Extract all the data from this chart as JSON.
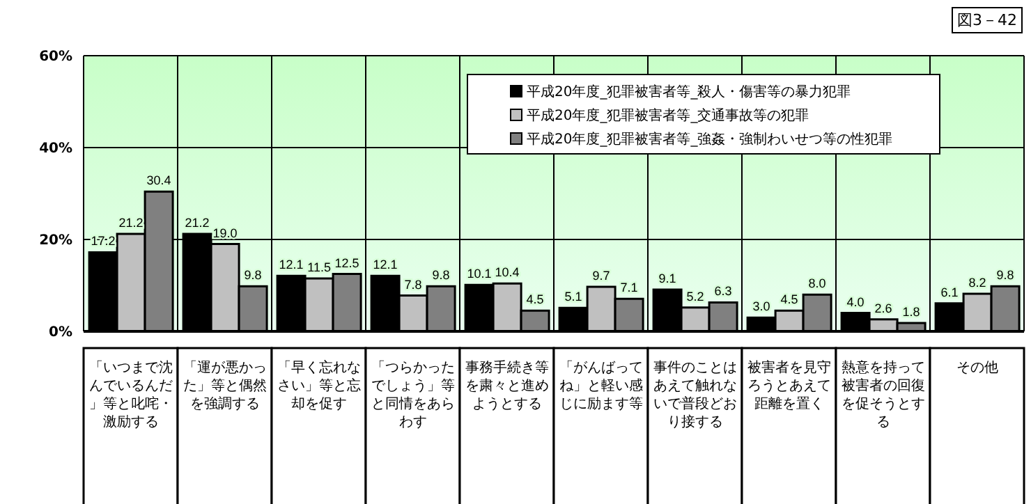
{
  "chart_data": {
    "type": "bar",
    "title": "図3－42",
    "categories": [
      "「いつまで沈んでいるんだ」等と叱咤・激励する",
      "「運が悪かった」等と偶然を強調する",
      "「早く忘れなさい」等と忘却を促す",
      "「つらかったでしょう」等と同情をあらわす",
      "事務手続き等を粛々と進めようとする",
      "「がんばってね」と軽い感じに励ます等",
      "事件のことはあえて触れないで普段どおり接する",
      "被害者を見守ろうとあえて距離を置く",
      "熱意を持って被害者の回復を促そうとする",
      "その他"
    ],
    "series": [
      {
        "name": "平成20年度_犯罪被害者等_殺人・傷害等の暴力犯罪",
        "color": "#000000",
        "values": [
          17.2,
          21.2,
          12.1,
          12.1,
          10.1,
          5.1,
          9.1,
          3.0,
          4.0,
          6.1
        ],
        "value_labels": [
          "17.2",
          "21.2",
          "12.1",
          "12.1",
          "10.1",
          "5.1",
          "9.1",
          "3.0",
          "4.0",
          "6.1"
        ]
      },
      {
        "name": "平成20年度_犯罪被害者等_交通事故等の犯罪",
        "color": "#c0c0c0",
        "values": [
          21.2,
          19.0,
          11.5,
          7.8,
          10.4,
          9.7,
          5.2,
          4.5,
          2.6,
          8.2
        ],
        "value_labels": [
          "21.2",
          "19.0",
          "11.5",
          "7.8",
          "10.4",
          "9.7",
          "5.2",
          "4.5",
          "2.6",
          "8.2"
        ]
      },
      {
        "name": "平成20年度_犯罪被害者等_強姦・強制わいせつ等の性犯罪",
        "color": "#808080",
        "values": [
          30.4,
          9.8,
          12.5,
          9.8,
          4.5,
          7.1,
          6.3,
          8.0,
          1.8,
          9.8
        ],
        "value_labels": [
          "30.4",
          "9.8",
          "12.5",
          "9.8",
          "4.5",
          "7.1",
          "6.3",
          "8.0",
          "1.8",
          "9.8"
        ]
      }
    ],
    "ylim": [
      0,
      60
    ],
    "yticks": [
      {
        "value": 0,
        "label": "0%"
      },
      {
        "value": 20,
        "label": "20%"
      },
      {
        "value": 40,
        "label": "40%"
      },
      {
        "value": 60,
        "label": "60%"
      }
    ],
    "grid": true,
    "legend": "top right"
  }
}
